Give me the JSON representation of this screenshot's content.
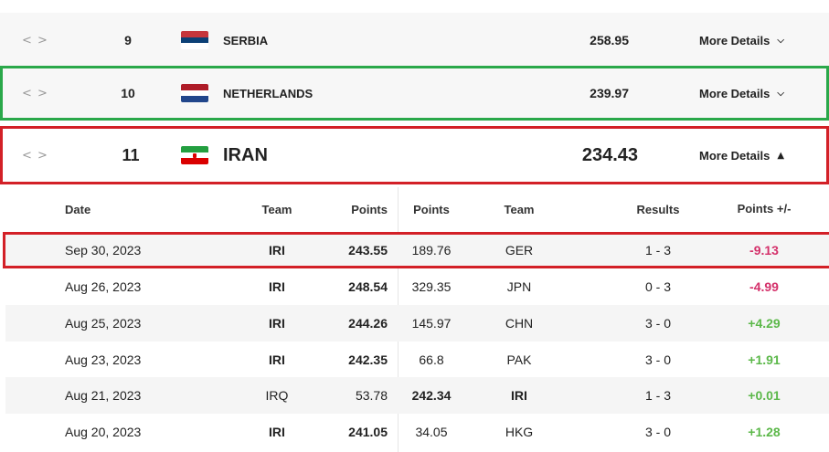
{
  "rankings": [
    {
      "rank": "9",
      "country": "SERBIA",
      "points": "258.95",
      "details_label": "More Details"
    },
    {
      "rank": "10",
      "country": "NETHERLANDS",
      "points": "239.97",
      "details_label": "More Details"
    },
    {
      "rank": "11",
      "country": "IRAN",
      "points": "234.43",
      "details_label": "More Details"
    }
  ],
  "flags": {
    "serbia": [
      "#c6363c",
      "#0c4076",
      "#ffffff"
    ],
    "netherlands": [
      "#ae1c28",
      "#ffffff",
      "#21468b"
    ],
    "iran": [
      "#239f40",
      "#ffffff",
      "#da0000"
    ]
  },
  "icons": {
    "handle": "drag-handle-icon",
    "collapsed": "chevron-down-icon",
    "expanded": "chevron-up-icon"
  },
  "history": {
    "headers": {
      "date": "Date",
      "team1": "Team",
      "points1": "Points",
      "points2": "Points",
      "team2": "Team",
      "results": "Results",
      "diff": "Points +/-"
    },
    "rows": [
      {
        "date": "Sep 30, 2023",
        "team1": "IRI",
        "points1": "243.55",
        "points2": "189.76",
        "team2": "GER",
        "result": "1 - 3",
        "diff": "-9.13"
      },
      {
        "date": "Aug 26, 2023",
        "team1": "IRI",
        "points1": "248.54",
        "points2": "329.35",
        "team2": "JPN",
        "result": "0 - 3",
        "diff": "-4.99"
      },
      {
        "date": "Aug 25, 2023",
        "team1": "IRI",
        "points1": "244.26",
        "points2": "145.97",
        "team2": "CHN",
        "result": "3 - 0",
        "diff": "+4.29"
      },
      {
        "date": "Aug 23, 2023",
        "team1": "IRI",
        "points1": "242.35",
        "points2": "66.8",
        "team2": "PAK",
        "result": "3 - 0",
        "diff": "+1.91"
      },
      {
        "date": "Aug 21, 2023",
        "team1": "IRQ",
        "points1": "53.78",
        "points2": "242.34",
        "team2": "IRI",
        "result": "1 - 3",
        "diff": "+0.01"
      },
      {
        "date": "Aug 20, 2023",
        "team1": "IRI",
        "points1": "241.05",
        "points2": "34.05",
        "team2": "HKG",
        "result": "3 - 0",
        "diff": "+1.28"
      }
    ]
  },
  "colors": {
    "highlight_green": "#2aa84a",
    "highlight_red": "#d32027",
    "negative": "#d4306a",
    "positive": "#5cb84a"
  }
}
